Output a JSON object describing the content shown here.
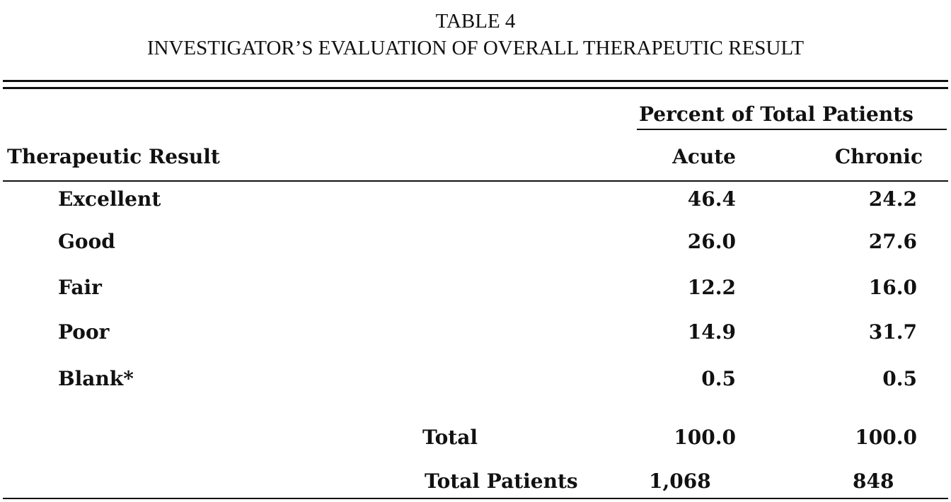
{
  "title": {
    "table_number": "TABLE 4",
    "caption": "INVESTIGATOR’S EVALUATION OF OVERALL THERAPEUTIC RESULT"
  },
  "table": {
    "group_header": "Percent of Total Patients",
    "columns": [
      "Therapeutic Result",
      "Acute",
      "Chronic"
    ],
    "rows": [
      [
        "Excellent",
        "46.4",
        "24.2"
      ],
      [
        "Good",
        "26.0",
        "27.6"
      ],
      [
        "Fair",
        "12.2",
        "16.0"
      ],
      [
        "Poor",
        "14.9",
        "31.7"
      ],
      [
        "Blank*",
        "0.5",
        "0.5"
      ]
    ],
    "totals": [
      [
        "Total",
        "100.0",
        "100.0"
      ],
      [
        "Total Patients",
        "1,068",
        "848"
      ]
    ]
  }
}
